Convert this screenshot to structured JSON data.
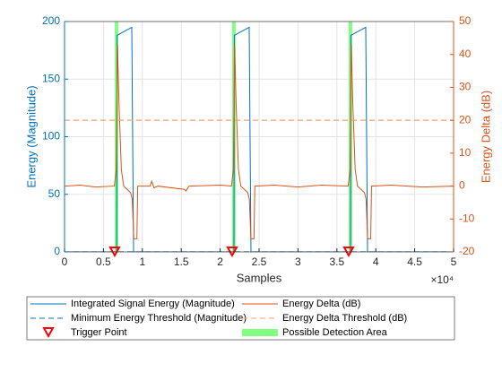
{
  "chart_data": {
    "type": "line",
    "xlabel": "Samples",
    "ylabel": "Energy (Magnitude)",
    "y2label": "Energy Delta (dB)",
    "x_exponent": "×10⁴",
    "xlim": [
      0,
      50000
    ],
    "xticks": [
      0,
      {
        "value": 5000,
        "label": "0.5"
      },
      {
        "value": 10000,
        "label": "1"
      },
      {
        "value": 15000,
        "label": "1.5"
      },
      {
        "value": 20000,
        "label": "2"
      },
      {
        "value": 25000,
        "label": "2.5"
      },
      {
        "value": 30000,
        "label": "3"
      },
      {
        "value": 35000,
        "label": "3.5"
      },
      {
        "value": 40000,
        "label": "4"
      },
      {
        "value": 45000,
        "label": "4.5"
      },
      {
        "value": 50000,
        "label": "5"
      }
    ],
    "ylim": [
      0,
      200
    ],
    "yticks": [
      0,
      50,
      100,
      150,
      200
    ],
    "y2lim": [
      -20,
      50
    ],
    "y2ticks": [
      -20,
      -10,
      0,
      10,
      20,
      30,
      40,
      50
    ],
    "ycolor": "#0072BD",
    "y2color": "#D95319",
    "grid": true,
    "legend": "bottom",
    "series": [
      {
        "name": "Integrated Signal Energy (Magnitude)",
        "color": "#0072BD",
        "axis": "y",
        "x": [
          0,
          6700,
          6750,
          8640,
          8870,
          21770,
          21820,
          23730,
          23960,
          36750,
          36800,
          38710,
          38940,
          50000
        ],
        "values": [
          0,
          0,
          188,
          195,
          0,
          0,
          188,
          195,
          0,
          0,
          188,
          195,
          0,
          0
        ]
      },
      {
        "name": "Energy Delta (dB)",
        "color": "#D95319",
        "axis": "y2",
        "x": [
          0,
          2000,
          4000,
          6400,
          6650,
          6800,
          7000,
          7300,
          7600,
          8500,
          8700,
          8900,
          9300,
          9400,
          11000,
          11200,
          11500,
          12000,
          15400,
          15600,
          16000,
          20000,
          21450,
          21700,
          21850,
          22050,
          22350,
          22650,
          23550,
          23750,
          23950,
          24350,
          24450,
          27000,
          30000,
          33000,
          36450,
          36700,
          36850,
          37050,
          37350,
          37650,
          38550,
          38750,
          38950,
          39350,
          39450,
          42000,
          46000,
          50000
        ],
        "values": [
          0,
          0.3,
          -0.3,
          0,
          5,
          43,
          25,
          5,
          0,
          -2,
          -4,
          -16,
          -16,
          0,
          0,
          1.5,
          -0.5,
          0,
          -1,
          -1.5,
          0,
          0.3,
          0,
          5,
          43,
          25,
          5,
          0,
          -2,
          -4,
          -16,
          -16,
          0,
          0.3,
          -0.3,
          0.3,
          0,
          5,
          43,
          25,
          5,
          0,
          -2,
          -4,
          -16,
          -16,
          0,
          0.3,
          -0.3,
          0
        ]
      },
      {
        "name": "Minimum Energy Threshold (Magnitude)",
        "color": "#0072BD",
        "axis": "y",
        "dash": true,
        "x": [
          0,
          50000
        ],
        "values": [
          0,
          0
        ]
      },
      {
        "name": "Energy Delta Threshold (dB)",
        "color": "#F0A070",
        "axis": "y2",
        "dash": true,
        "x": [
          0,
          50000
        ],
        "values": [
          20,
          20
        ]
      },
      {
        "name": "Trigger Point",
        "color": "#FF0000",
        "axis": "y",
        "marker": "triangle-down",
        "x": [
          6450,
          21540,
          36520
        ],
        "values": [
          0,
          0,
          0
        ]
      },
      {
        "name": "Possible Detection Area",
        "color": "#80FF80",
        "axis": "y",
        "area": true,
        "regions": [
          [
            6450,
            6900
          ],
          [
            21540,
            21990
          ],
          [
            36520,
            36970
          ]
        ]
      }
    ]
  }
}
